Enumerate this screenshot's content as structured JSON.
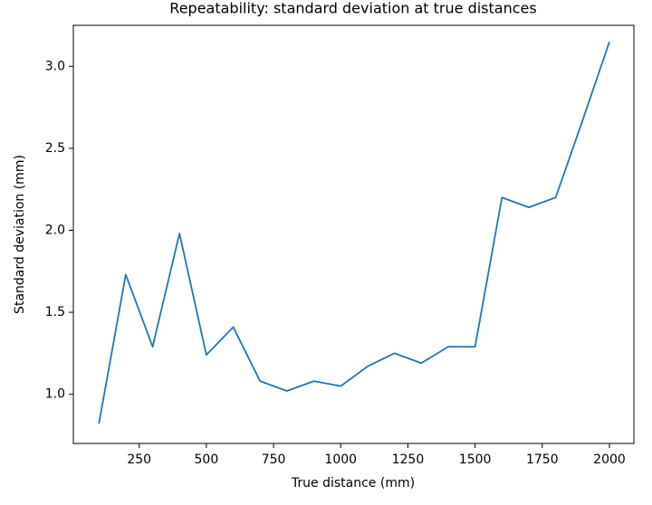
{
  "chart_data": {
    "type": "line",
    "title": "Repeatability: standard deviation at true distances",
    "x_label": "True distance (mm)",
    "y_label": "Standard deviation (mm)",
    "x": [
      100,
      200,
      300,
      400,
      500,
      600,
      700,
      800,
      900,
      1000,
      1100,
      1200,
      1300,
      1400,
      1500,
      1600,
      1700,
      1800,
      1900,
      2000
    ],
    "series": [
      {
        "color": "#1f77b4",
        "values": [
          0.82,
          1.73,
          1.29,
          1.98,
          1.24,
          1.41,
          1.08,
          1.02,
          1.08,
          1.05,
          1.17,
          1.25,
          1.19,
          1.29,
          1.29,
          2.2,
          2.14,
          2.2,
          2.67,
          3.15
        ]
      }
    ],
    "xlim": [
      5,
      2091
    ],
    "ylim": [
      0.7,
      3.25
    ],
    "xticks": [
      250,
      500,
      750,
      1000,
      1250,
      1500,
      1750,
      2000
    ],
    "yticks": [
      {
        "value": 1,
        "label": "1.0"
      },
      1.5,
      {
        "value": 2,
        "label": "2.0"
      },
      2.5,
      {
        "value": 3,
        "label": "3.0"
      }
    ],
    "grid": false
  }
}
